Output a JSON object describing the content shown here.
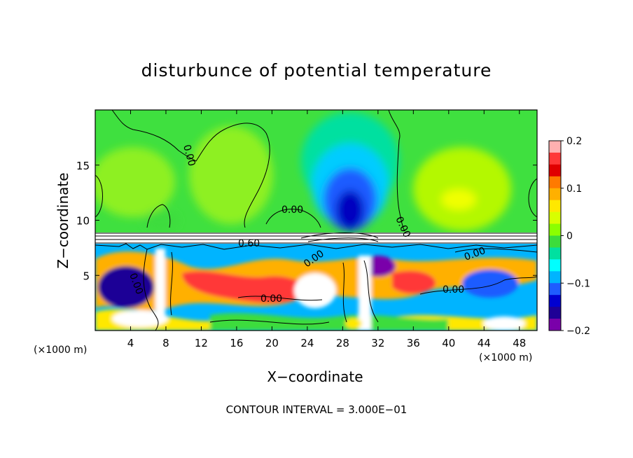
{
  "chart_data": {
    "type": "heatmap",
    "title": "disturbunce of potential temperature",
    "xlabel": "X−coordinate",
    "ylabel": "Z−coordinate",
    "x_unit_left": "(×1000 m)",
    "x_unit_right": "(×1000 m)",
    "xticks": [
      4,
      8,
      12,
      16,
      20,
      24,
      28,
      32,
      36,
      40,
      44,
      48
    ],
    "yticks": [
      5,
      10,
      15
    ],
    "xlim": [
      0,
      50
    ],
    "ylim": [
      0,
      20
    ],
    "colorbar": {
      "range": [
        -0.2,
        0.2
      ],
      "ticks": [
        "0.2",
        "0.1",
        "0",
        "−0.1",
        "−0.2"
      ],
      "colors": [
        "#ffb0b0",
        "#ff3838",
        "#e00000",
        "#ff7a00",
        "#ffb000",
        "#ffe800",
        "#d8ff00",
        "#8cff00",
        "#3cdc3c",
        "#00e0a0",
        "#00ffff",
        "#00b4ff",
        "#1f5cff",
        "#0000d0",
        "#1e0096",
        "#7a00aa"
      ]
    },
    "contour_labels": [
      "0.00",
      "0.60",
      "0.00",
      "0.00",
      "0.00",
      "0.00",
      "0.00",
      "0.00",
      "0.00"
    ],
    "contour_interval": "CONTOUR INTERVAL = 3.000E−01"
  }
}
